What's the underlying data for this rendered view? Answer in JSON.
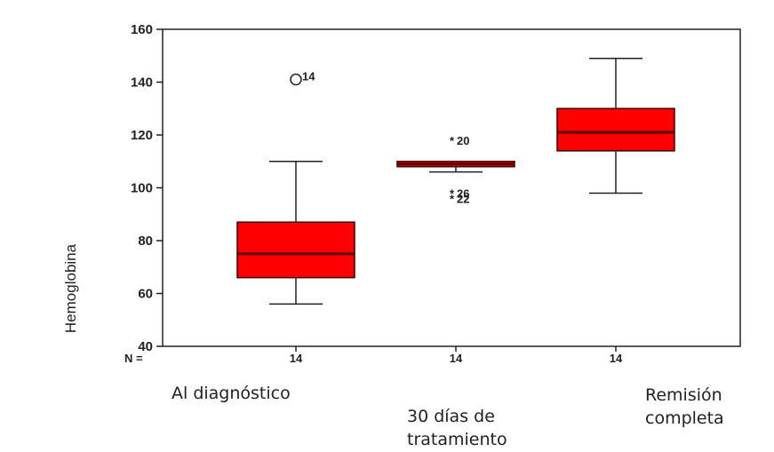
{
  "chart_data": {
    "type": "boxplot",
    "ylabel": "Hemoglobina",
    "ylim": [
      40,
      160
    ],
    "yticks": [
      40,
      60,
      80,
      100,
      120,
      140,
      160
    ],
    "n_prefix": "N =",
    "grid": false,
    "box_color": "#ff0000",
    "median_color": "#5a0000",
    "categories": [
      {
        "label": [
          "Al diagnóstico"
        ],
        "n": "14",
        "whisker_low": 56,
        "q1": 66,
        "median": 75,
        "q3": 87,
        "whisker_high": 110,
        "outliers": [
          {
            "value": 141,
            "marker": "circle",
            "label": "14"
          }
        ]
      },
      {
        "label": [
          "30 días de",
          "tratamiento"
        ],
        "n": "14",
        "whisker_low": 106,
        "q1": 108,
        "median": 109,
        "q3": 110,
        "whisker_high": 110,
        "outliers": [
          {
            "value": 118,
            "marker": "star",
            "label": "20"
          },
          {
            "value": 98,
            "marker": "star",
            "label": "26"
          },
          {
            "value": 96,
            "marker": "star",
            "label": "22"
          }
        ]
      },
      {
        "label": [
          "Remisión",
          "completa"
        ],
        "n": "14",
        "whisker_low": 98,
        "q1": 114,
        "median": 121,
        "q3": 130,
        "whisker_high": 149,
        "outliers": []
      }
    ]
  }
}
